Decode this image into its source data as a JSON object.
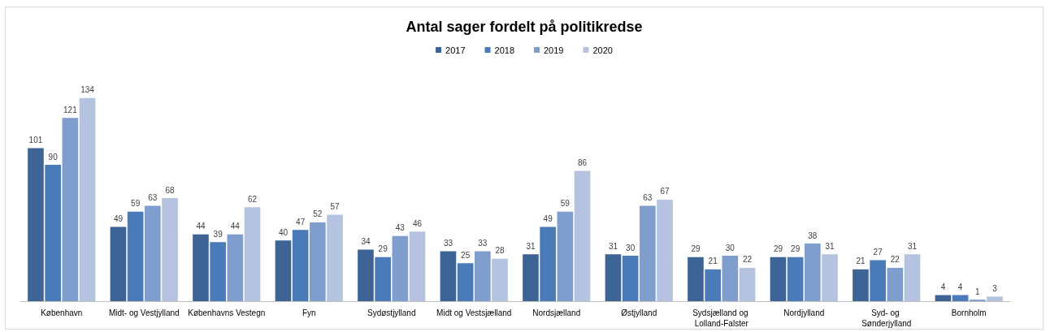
{
  "chart_data": {
    "type": "bar",
    "title": "Antal sager fordelt på politikredse",
    "categories": [
      "København",
      "Midt- og Vestjylland",
      "Københavns Vestegn",
      "Fyn",
      "Sydøstjylland",
      "Midt og Vestsjælland",
      "Nordsjælland",
      "Østjylland",
      "Sydsjælland og Lolland-Falster",
      "Nordjylland",
      "Syd- og Sønderjylland",
      "Bornholm"
    ],
    "series": [
      {
        "name": "2017",
        "color": "#3d6494",
        "values": [
          101,
          49,
          44,
          40,
          34,
          33,
          31,
          31,
          29,
          29,
          21,
          4
        ]
      },
      {
        "name": "2018",
        "color": "#4a7ab8",
        "values": [
          90,
          59,
          39,
          47,
          29,
          25,
          49,
          30,
          21,
          29,
          27,
          4
        ]
      },
      {
        "name": "2019",
        "color": "#7f9dcd",
        "values": [
          121,
          63,
          44,
          52,
          43,
          33,
          59,
          63,
          30,
          38,
          22,
          1
        ]
      },
      {
        "name": "2020",
        "color": "#b5c3e0",
        "values": [
          134,
          68,
          62,
          57,
          46,
          28,
          86,
          67,
          22,
          31,
          31,
          3
        ]
      }
    ],
    "data_labels": true,
    "legend": "top",
    "grid": false
  }
}
